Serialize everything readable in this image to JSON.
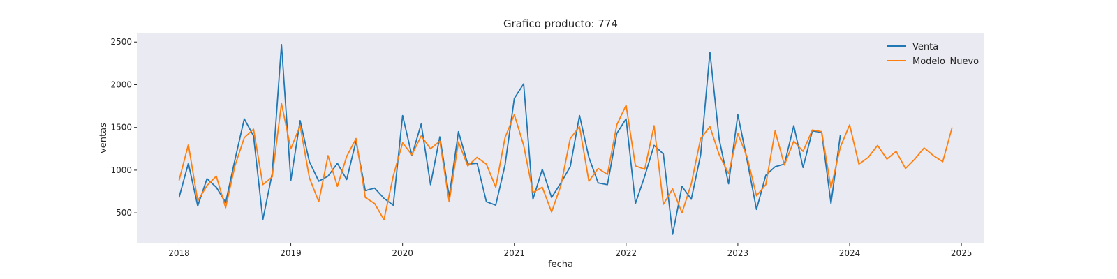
{
  "chart_data": {
    "type": "line",
    "title": "Grafico producto: 774",
    "xlabel": "fecha",
    "ylabel": "ventas",
    "x_axis": "date (monthly)",
    "xlim": [
      "2017-08-15",
      "2025-03-15"
    ],
    "ylim": [
      150,
      2600
    ],
    "xticks": [
      "2018",
      "2019",
      "2020",
      "2021",
      "2022",
      "2023",
      "2024",
      "2025"
    ],
    "yticks": [
      500,
      1000,
      1500,
      2000,
      2500
    ],
    "grid": false,
    "background": "#eaeaf2",
    "legend_position": "top-right",
    "series": [
      {
        "name": "Venta",
        "color": "#1f77b4",
        "start": "2018-01",
        "values": [
          680,
          1080,
          580,
          900,
          800,
          620,
          1120,
          1600,
          1400,
          420,
          960,
          2470,
          880,
          1580,
          1100,
          870,
          930,
          1080,
          890,
          1340,
          760,
          790,
          670,
          590,
          1640,
          1170,
          1540,
          830,
          1390,
          690,
          1450,
          1070,
          1080,
          630,
          590,
          1060,
          1840,
          2010,
          660,
          1010,
          680,
          850,
          1040,
          1640,
          1150,
          850,
          830,
          1430,
          1600,
          610,
          930,
          1290,
          1190,
          250,
          810,
          660,
          1180,
          2380,
          1360,
          840,
          1650,
          1110,
          540,
          940,
          1040,
          1070,
          1520,
          1030,
          1460,
          1440,
          610,
          1410
        ]
      },
      {
        "name": "Modelo_Nuevo",
        "color": "#ff7f0e",
        "start": "2018-01",
        "values": [
          880,
          1300,
          640,
          820,
          930,
          560,
          1050,
          1380,
          1480,
          830,
          920,
          1780,
          1250,
          1520,
          910,
          630,
          1170,
          810,
          1160,
          1370,
          680,
          610,
          420,
          930,
          1320,
          1180,
          1400,
          1250,
          1340,
          630,
          1330,
          1050,
          1150,
          1070,
          800,
          1380,
          1650,
          1290,
          740,
          800,
          510,
          820,
          1370,
          1510,
          870,
          1020,
          950,
          1530,
          1760,
          1050,
          1010,
          1520,
          600,
          780,
          500,
          840,
          1370,
          1510,
          1180,
          960,
          1430,
          1150,
          700,
          830,
          1460,
          1060,
          1340,
          1220,
          1470,
          1450,
          790,
          1270,
          1530,
          1070,
          1150,
          1290,
          1130,
          1220,
          1020,
          1130,
          1260,
          1170,
          1100,
          1500
        ]
      }
    ]
  }
}
